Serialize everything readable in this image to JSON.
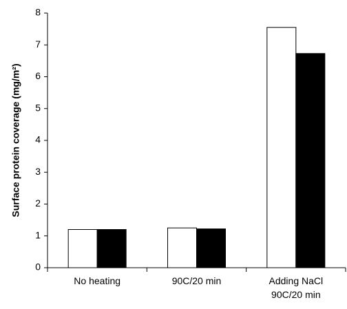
{
  "chart_data": {
    "type": "bar",
    "categories": [
      "No heating",
      "90C/20 min",
      "Adding NaCl\n90C/20 min"
    ],
    "series": [
      {
        "values": [
          1.2,
          1.25,
          7.55
        ],
        "color": "#ffffff"
      },
      {
        "values": [
          1.2,
          1.22,
          6.73
        ],
        "color": "#000000"
      }
    ],
    "title": "",
    "xlabel": "",
    "ylabel": "Surface protein coverage (mg/m²)",
    "ylim": [
      0,
      8
    ],
    "yticks": [
      "0",
      "1",
      "2",
      "3",
      "4",
      "5",
      "6",
      "7",
      "8"
    ],
    "grid": false,
    "legend": "none"
  }
}
